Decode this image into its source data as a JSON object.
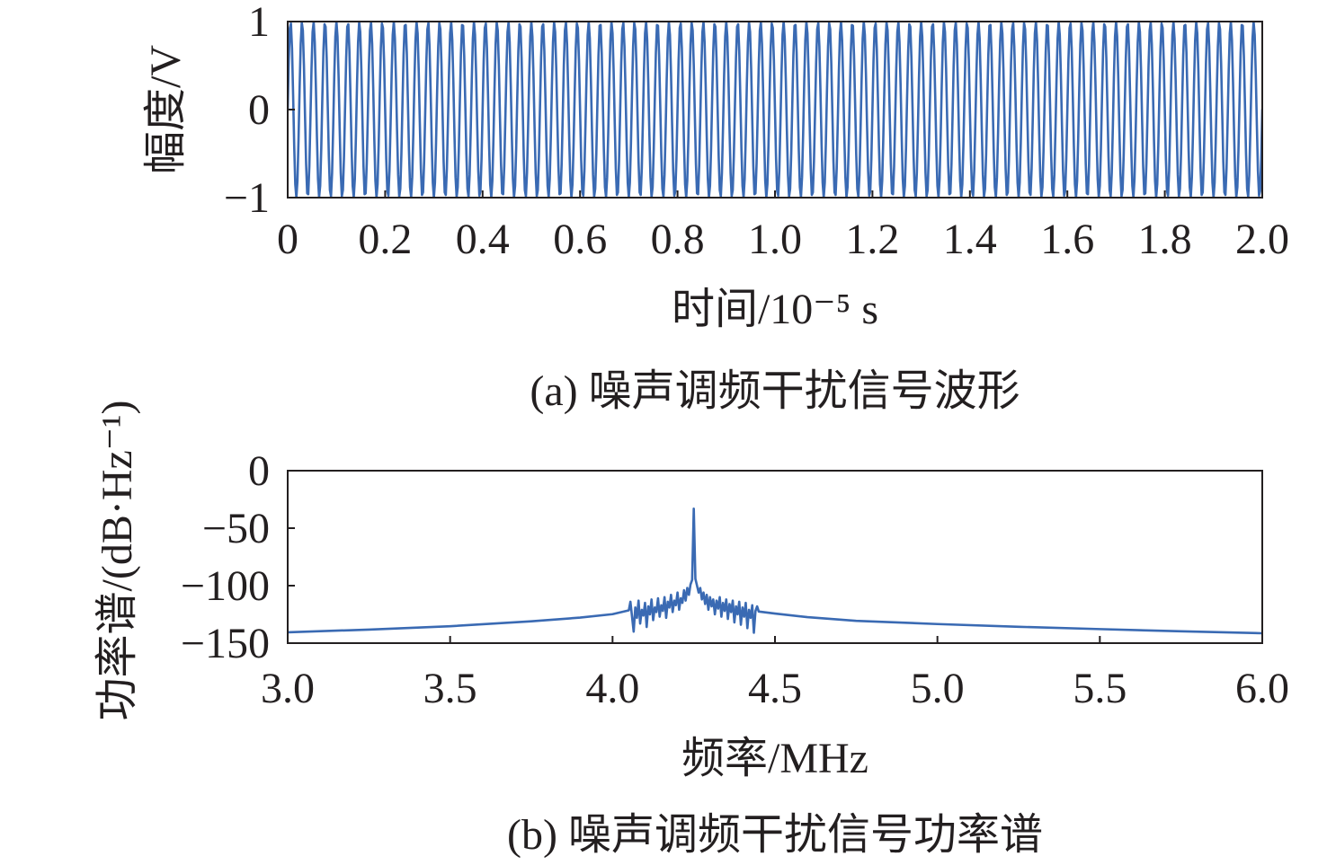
{
  "chart_data": [
    {
      "type": "line",
      "caption": "(a) 噪声调频干扰信号波形",
      "xlabel": "时间/10⁻⁵ s",
      "ylabel": "幅度/V",
      "xlim": [
        0,
        2.0
      ],
      "ylim": [
        -1,
        1
      ],
      "xticks": [
        0,
        0.2,
        0.4,
        0.6,
        0.8,
        1.0,
        1.2,
        1.4,
        1.6,
        1.8,
        2.0
      ],
      "xticklabels": [
        "0",
        "0.2",
        "0.4",
        "0.6",
        "0.8",
        "1.0",
        "1.2",
        "1.4",
        "1.6",
        "1.8",
        "2.0"
      ],
      "yticks": [
        1,
        0,
        -1
      ],
      "yticklabels": [
        "1",
        "0",
        "−1"
      ],
      "grid": false,
      "series": [
        {
          "amplitude": 1,
          "frequency_mhz": 4.25,
          "color": "#3a6ab3"
        }
      ]
    },
    {
      "type": "line",
      "caption": "(b) 噪声调频干扰信号功率谱",
      "xlabel": "频率/MHz",
      "ylabel": "功率谱/(dB·Hz⁻¹)",
      "xlim": [
        3.0,
        6.0
      ],
      "ylim": [
        -150,
        0
      ],
      "xticks": [
        3.0,
        3.5,
        4.0,
        4.5,
        5.0,
        5.5,
        6.0
      ],
      "xticklabels": [
        "3.0",
        "3.5",
        "4.0",
        "4.5",
        "5.0",
        "5.5",
        "6.0"
      ],
      "yticks": [
        0,
        -50,
        -100,
        -150
      ],
      "yticklabels": [
        "0",
        "−50",
        "−100",
        "−150"
      ],
      "grid": false,
      "series": [
        {
          "color": "#3a6ab3",
          "x": [
            3.0,
            3.25,
            3.5,
            3.75,
            3.9,
            4.0,
            4.05,
            4.055,
            4.06,
            4.065,
            4.07,
            4.075,
            4.08,
            4.085,
            4.09,
            4.095,
            4.1,
            4.105,
            4.11,
            4.115,
            4.12,
            4.125,
            4.13,
            4.135,
            4.14,
            4.145,
            4.15,
            4.155,
            4.16,
            4.165,
            4.17,
            4.175,
            4.18,
            4.185,
            4.19,
            4.195,
            4.2,
            4.205,
            4.21,
            4.215,
            4.22,
            4.225,
            4.23,
            4.235,
            4.24,
            4.245,
            4.25,
            4.255,
            4.26,
            4.265,
            4.27,
            4.275,
            4.28,
            4.285,
            4.29,
            4.295,
            4.3,
            4.305,
            4.31,
            4.315,
            4.32,
            4.325,
            4.33,
            4.335,
            4.34,
            4.345,
            4.35,
            4.355,
            4.36,
            4.365,
            4.37,
            4.375,
            4.38,
            4.385,
            4.39,
            4.395,
            4.4,
            4.405,
            4.41,
            4.415,
            4.42,
            4.425,
            4.43,
            4.435,
            4.44,
            4.445,
            4.45,
            4.5,
            4.6,
            4.75,
            5.0,
            5.25,
            5.5,
            5.75,
            6.0
          ],
          "y": [
            -140.6,
            -138.2,
            -135.3,
            -131.0,
            -127.8,
            -124.8,
            -121.5,
            -114,
            -127,
            -140,
            -119,
            -128,
            -113,
            -133,
            -121,
            -126,
            -115,
            -136,
            -118,
            -125,
            -112,
            -130,
            -119,
            -123,
            -111,
            -127,
            -117,
            -122,
            -110,
            -128,
            -114,
            -119,
            -108,
            -123,
            -113,
            -117,
            -106,
            -121,
            -111,
            -115,
            -104,
            -113,
            -102,
            -108,
            -99,
            -95,
            -33,
            -94,
            -100,
            -106,
            -102,
            -112,
            -106,
            -116,
            -108,
            -121,
            -110,
            -118,
            -112,
            -125,
            -113,
            -120,
            -110,
            -127,
            -115,
            -122,
            -112,
            -129,
            -116,
            -123,
            -113,
            -132,
            -118,
            -125,
            -114,
            -134,
            -119,
            -127,
            -115,
            -137,
            -121,
            -128,
            -117,
            -141,
            -122,
            -118,
            -122.5,
            -124.3,
            -127.4,
            -130.6,
            -133.4,
            -135.8,
            -137.8,
            -139.7,
            -141.4
          ]
        }
      ]
    }
  ]
}
